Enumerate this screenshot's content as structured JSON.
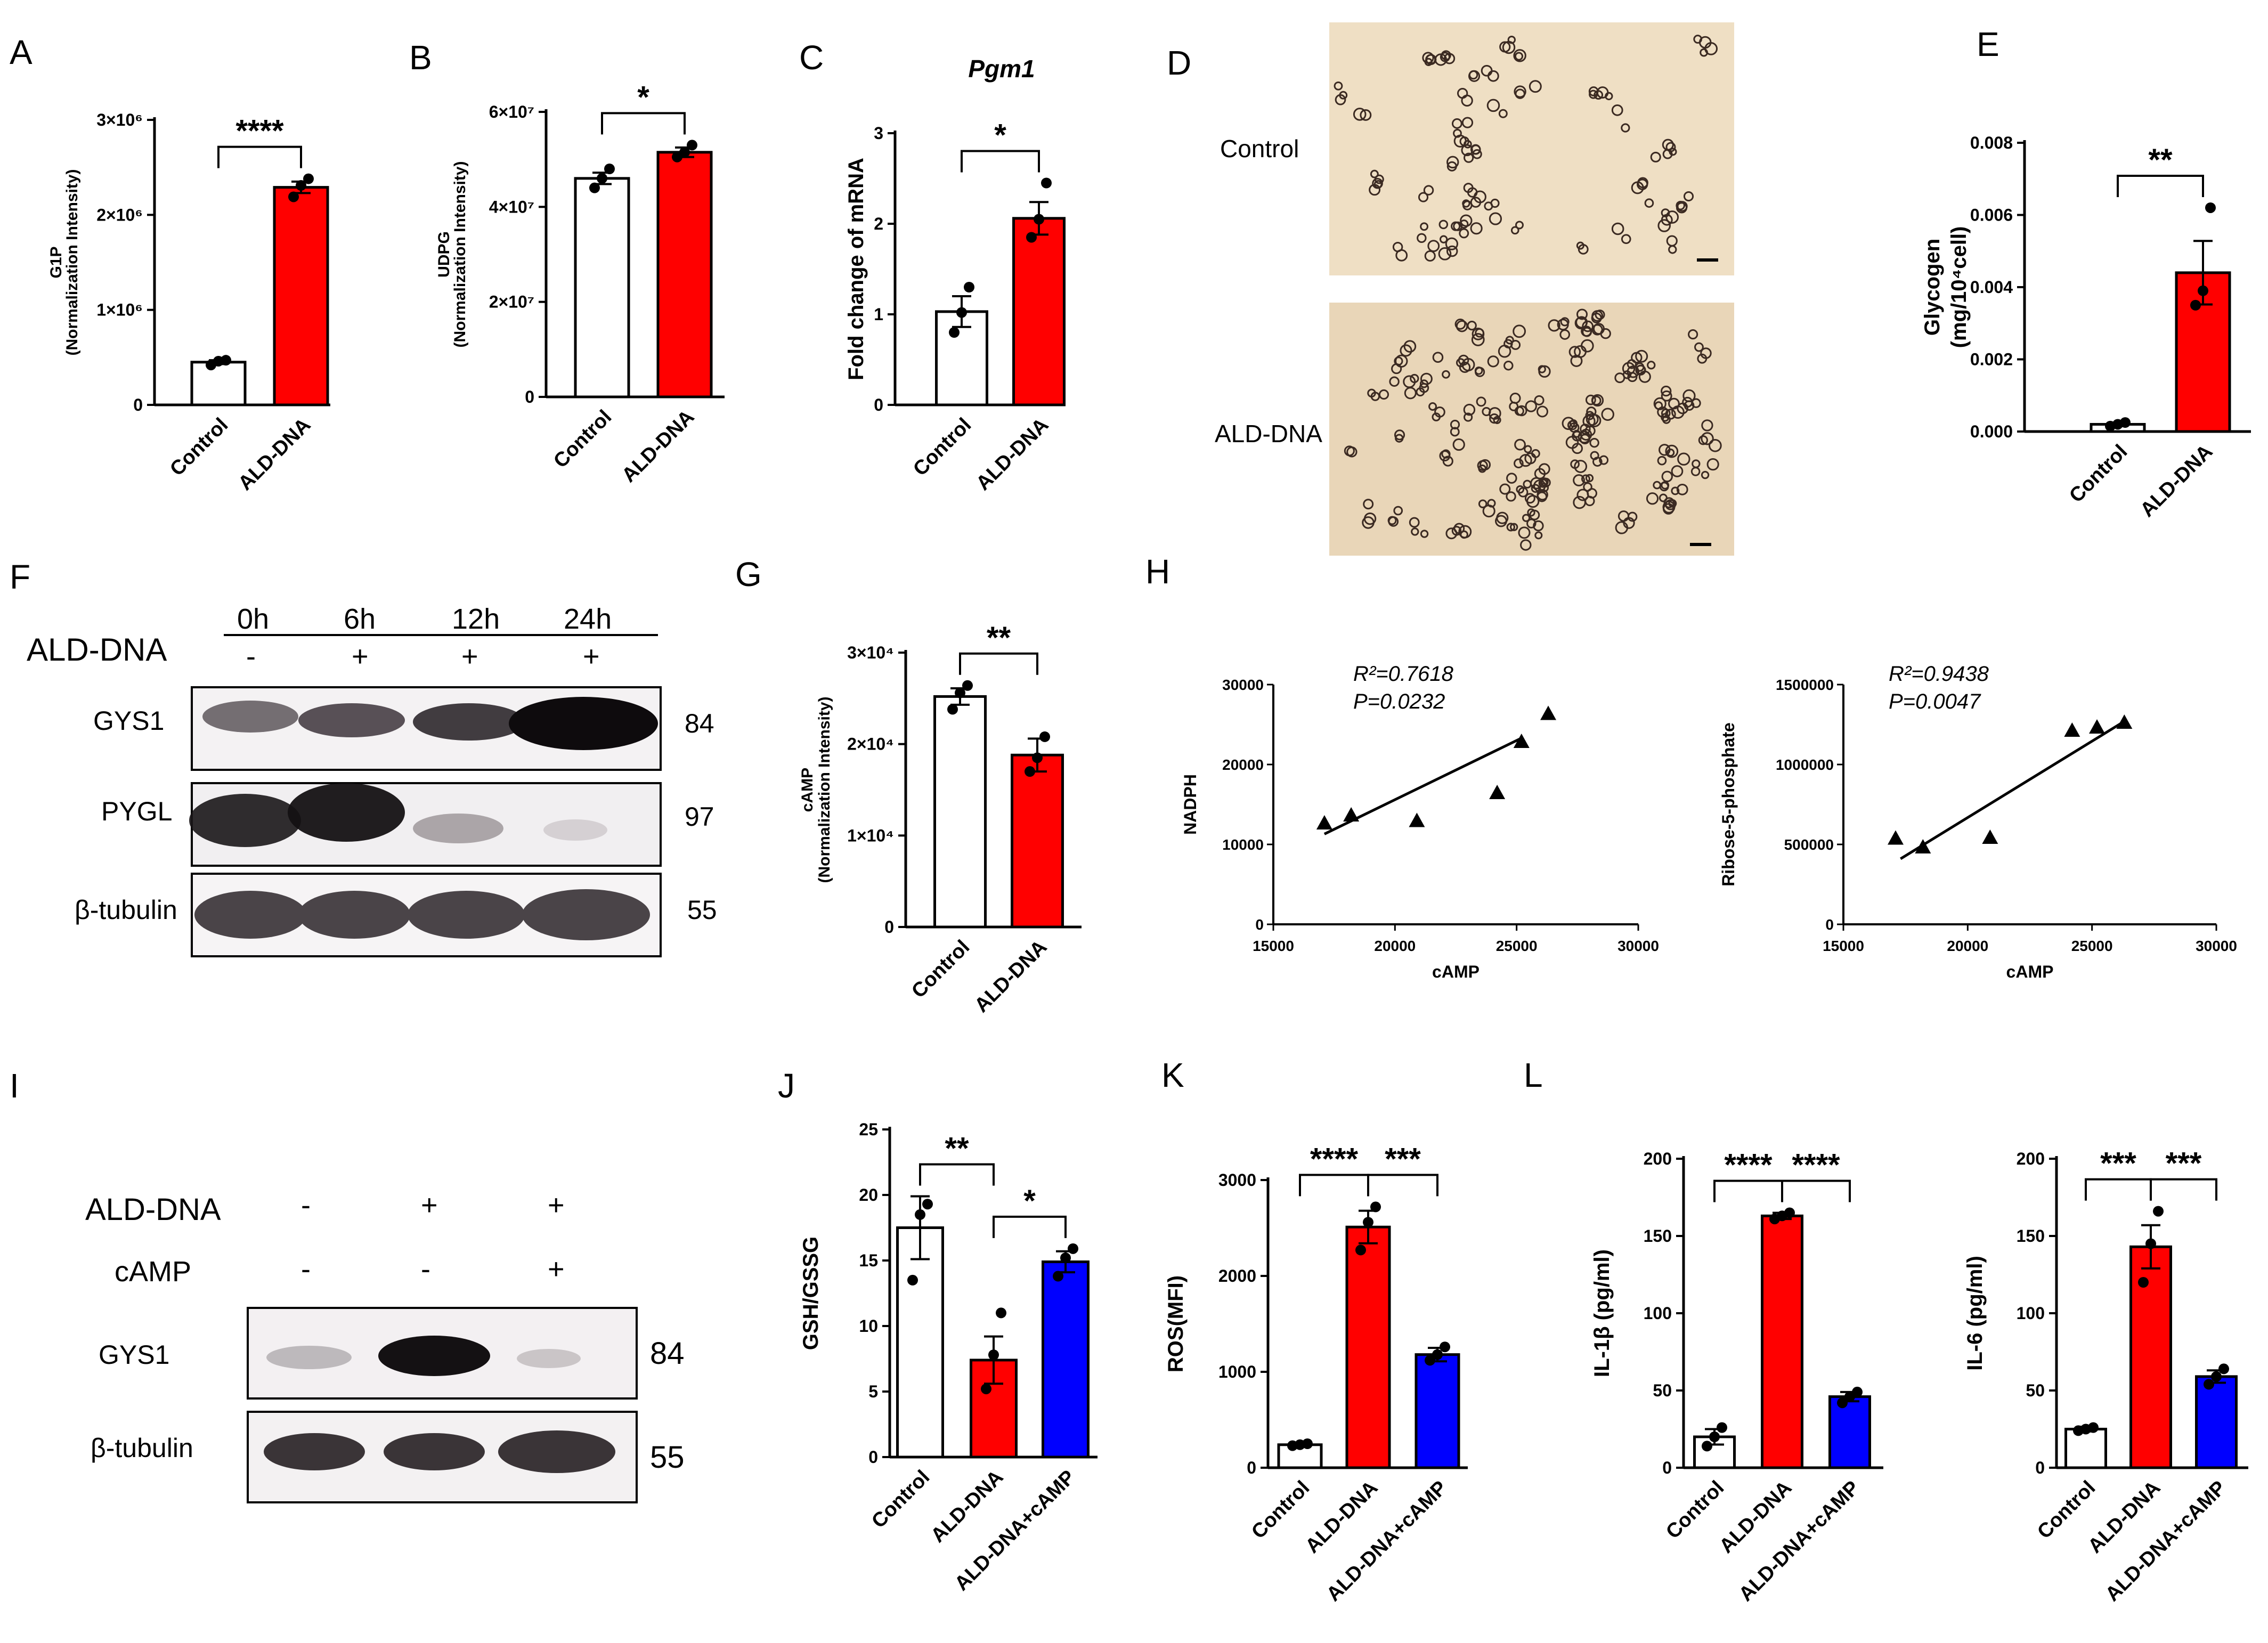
{
  "figure": {
    "panel_letters": [
      "A",
      "B",
      "C",
      "D",
      "E",
      "F",
      "G",
      "H",
      "I",
      "J",
      "K",
      "L"
    ]
  },
  "micrograph": {
    "row_labels": [
      "Control",
      "ALD-DNA"
    ],
    "fill_color": "#eedcc0"
  },
  "blots": {
    "F": {
      "timepoints": [
        "0h",
        "6h",
        "12h",
        "24h"
      ],
      "treatment_label": "ALD-DNA",
      "treatment_marks": [
        "-",
        "+",
        "+",
        "+"
      ],
      "proteins": [
        "GYS1",
        "PYGL",
        "β-tubulin"
      ],
      "kda": [
        "84",
        "97",
        "55"
      ]
    },
    "I": {
      "rows": [
        {
          "label": "ALD-DNA",
          "marks": [
            "-",
            "+",
            "+"
          ]
        },
        {
          "label": "cAMP",
          "marks": [
            "-",
            "-",
            "+"
          ]
        }
      ],
      "proteins": [
        "GYS1",
        "β-tubulin"
      ],
      "kda": [
        "84",
        "55"
      ]
    }
  },
  "colors": {
    "control": "#ffffff",
    "ald_dna": "#ff0000",
    "ald_camp": "#0000ff",
    "axis": "#000000"
  },
  "chart_data": [
    {
      "panel": "A",
      "type": "bar",
      "title": "",
      "ylabel": [
        "G1P",
        "(Normalization Intensity)"
      ],
      "categories": [
        "Control",
        "ALD-DNA"
      ],
      "values": [
        450000,
        2290000
      ],
      "errors": [
        20000,
        60000
      ],
      "points": [
        [
          420000,
          460000,
          470000
        ],
        [
          2190000,
          2310000,
          2380000
        ]
      ],
      "ylim": [
        0,
        3000000
      ],
      "yticks": [
        {
          "v": 0,
          "label": "0"
        },
        {
          "v": 1000000,
          "label": "1×10⁶"
        },
        {
          "v": 2000000,
          "label": "2×10⁶"
        },
        {
          "v": 3000000,
          "label": "3×10⁶"
        }
      ],
      "colors": [
        "#ffffff",
        "#ff0000"
      ],
      "significance": [
        {
          "from": 0,
          "to": 1,
          "label": "****"
        }
      ]
    },
    {
      "panel": "B",
      "type": "bar",
      "title": "",
      "ylabel": [
        "UDPG",
        "(Normalization Intensity)"
      ],
      "categories": [
        "Control",
        "ALD-DNA"
      ],
      "values": [
        46000000,
        51500000
      ],
      "errors": [
        1200000,
        1000000
      ],
      "points": [
        [
          44000000,
          46000000,
          48000000
        ],
        [
          50500000,
          51500000,
          53000000
        ]
      ],
      "ylim": [
        0,
        60000000
      ],
      "yticks": [
        {
          "v": 0,
          "label": "0"
        },
        {
          "v": 20000000,
          "label": "2×10⁷"
        },
        {
          "v": 40000000,
          "label": "4×10⁷"
        },
        {
          "v": 60000000,
          "label": "6×10⁷"
        }
      ],
      "colors": [
        "#ffffff",
        "#ff0000"
      ],
      "significance": [
        {
          "from": 0,
          "to": 1,
          "label": "*"
        }
      ]
    },
    {
      "panel": "C",
      "type": "bar",
      "title": "Pgm1",
      "ylabel": [
        "Fold change of mRNA"
      ],
      "categories": [
        "Control",
        "ALD-DNA"
      ],
      "values": [
        1.03,
        2.06
      ],
      "errors": [
        0.17,
        0.18
      ],
      "points": [
        [
          0.8,
          1.02,
          1.3
        ],
        [
          1.85,
          2.05,
          2.45
        ]
      ],
      "ylim": [
        0,
        3
      ],
      "yticks": [
        {
          "v": 0,
          "label": "0"
        },
        {
          "v": 1,
          "label": "1"
        },
        {
          "v": 2,
          "label": "2"
        },
        {
          "v": 3,
          "label": "3"
        }
      ],
      "colors": [
        "#ffffff",
        "#ff0000"
      ],
      "significance": [
        {
          "from": 0,
          "to": 1,
          "label": "*"
        }
      ]
    },
    {
      "panel": "E",
      "type": "bar",
      "title": "",
      "ylabel": [
        "Glycogen",
        "(mg/10⁴cell)"
      ],
      "categories": [
        "Control",
        "ALD-DNA"
      ],
      "values": [
        0.0002,
        0.0044
      ],
      "errors": [
        5e-05,
        0.00088
      ],
      "points": [
        [
          0.00015,
          0.0002,
          0.00025
        ],
        [
          0.0035,
          0.0039,
          0.0062
        ]
      ],
      "ylim": [
        0,
        0.008
      ],
      "yticks": [
        {
          "v": 0,
          "label": "0.000"
        },
        {
          "v": 0.002,
          "label": "0.002"
        },
        {
          "v": 0.004,
          "label": "0.004"
        },
        {
          "v": 0.006,
          "label": "0.006"
        },
        {
          "v": 0.008,
          "label": "0.008"
        }
      ],
      "colors": [
        "#ffffff",
        "#ff0000"
      ],
      "significance": [
        {
          "from": 0,
          "to": 1,
          "label": "**"
        }
      ]
    },
    {
      "panel": "G",
      "type": "bar",
      "title": "",
      "ylabel": [
        "cAMP",
        "(Normalization Intensity)"
      ],
      "categories": [
        "Control",
        "ALD-DNA"
      ],
      "values": [
        25200,
        18800
      ],
      "errors": [
        900,
        1800
      ],
      "points": [
        [
          23800,
          25600,
          26400
        ],
        [
          17000,
          18500,
          20800
        ]
      ],
      "ylim": [
        0,
        30000
      ],
      "yticks": [
        {
          "v": 0,
          "label": "0"
        },
        {
          "v": 10000,
          "label": "1×10⁴"
        },
        {
          "v": 20000,
          "label": "2×10⁴"
        },
        {
          "v": 30000,
          "label": "3×10⁴"
        }
      ],
      "colors": [
        "#ffffff",
        "#ff0000"
      ],
      "significance": [
        {
          "from": 0,
          "to": 1,
          "label": "**"
        }
      ]
    },
    {
      "panel": "H1",
      "type": "scatter",
      "xlabel": "cAMP",
      "ylabel": "NADPH",
      "annotation": [
        "R²=0.7618",
        "P=0.0232"
      ],
      "x": [
        17100,
        18200,
        20900,
        24200,
        25200,
        26300
      ],
      "y": [
        12600,
        13600,
        12900,
        16400,
        22800,
        26300
      ],
      "fit": [
        [
          17100,
          11300
        ],
        [
          25200,
          23300
        ]
      ],
      "xlim": [
        15000,
        30000
      ],
      "ylim": [
        0,
        30000
      ],
      "xticks": [
        {
          "v": 15000,
          "label": "15000"
        },
        {
          "v": 20000,
          "label": "20000"
        },
        {
          "v": 25000,
          "label": "25000"
        },
        {
          "v": 30000,
          "label": "30000"
        }
      ],
      "yticks": [
        {
          "v": 0,
          "label": "0"
        },
        {
          "v": 10000,
          "label": "10000"
        },
        {
          "v": 20000,
          "label": "20000"
        },
        {
          "v": 30000,
          "label": "30000"
        }
      ]
    },
    {
      "panel": "H2",
      "type": "scatter",
      "xlabel": "cAMP",
      "ylabel": "Ribose-5-phosphate",
      "annotation": [
        "R²=0.9438",
        "P=0.0047"
      ],
      "x": [
        17100,
        18200,
        20900,
        24200,
        25200,
        26300
      ],
      "y": [
        535000,
        480000,
        540000,
        1210000,
        1230000,
        1260000
      ],
      "fit": [
        [
          17300,
          410000
        ],
        [
          26300,
          1270000
        ]
      ],
      "xlim": [
        15000,
        30000
      ],
      "ylim": [
        0,
        1500000
      ],
      "xticks": [
        {
          "v": 15000,
          "label": "15000"
        },
        {
          "v": 20000,
          "label": "20000"
        },
        {
          "v": 25000,
          "label": "25000"
        },
        {
          "v": 30000,
          "label": "30000"
        }
      ],
      "yticks": [
        {
          "v": 0,
          "label": "0"
        },
        {
          "v": 500000,
          "label": "500000"
        },
        {
          "v": 1000000,
          "label": "1000000"
        },
        {
          "v": 1500000,
          "label": "1500000"
        }
      ]
    },
    {
      "panel": "J",
      "type": "bar",
      "title": "",
      "ylabel": [
        "GSH/GSSG"
      ],
      "categories": [
        "Control",
        "ALD-DNA",
        "ALD-DNA+cAMP"
      ],
      "values": [
        17.5,
        7.4,
        14.9
      ],
      "errors": [
        2.4,
        1.8,
        0.8
      ],
      "points": [
        [
          13.5,
          18.5,
          19.3
        ],
        [
          5.2,
          7.8,
          11.0
        ],
        [
          13.8,
          15.2,
          15.9
        ]
      ],
      "ylim": [
        0,
        25
      ],
      "yticks": [
        {
          "v": 0,
          "label": "0"
        },
        {
          "v": 5,
          "label": "5"
        },
        {
          "v": 10,
          "label": "10"
        },
        {
          "v": 15,
          "label": "15"
        },
        {
          "v": 20,
          "label": "20"
        },
        {
          "v": 25,
          "label": "25"
        }
      ],
      "colors": [
        "#ffffff",
        "#ff0000",
        "#0000ff"
      ],
      "significance": [
        {
          "from": 0,
          "to": 1,
          "label": "**"
        },
        {
          "from": 1,
          "to": 2,
          "label": "*"
        }
      ]
    },
    {
      "panel": "K",
      "type": "bar",
      "title": "",
      "ylabel": [
        "ROS(MFI)"
      ],
      "categories": [
        "Control",
        "ALD-DNA",
        "ALD-DNA+cAMP"
      ],
      "values": [
        240,
        2510,
        1180
      ],
      "errors": [
        15,
        170,
        70
      ],
      "points": [
        [
          230,
          240,
          250
        ],
        [
          2270,
          2560,
          2720
        ],
        [
          1120,
          1180,
          1260
        ]
      ],
      "ylim": [
        0,
        3000
      ],
      "yticks": [
        {
          "v": 0,
          "label": "0"
        },
        {
          "v": 1000,
          "label": "1000"
        },
        {
          "v": 2000,
          "label": "2000"
        },
        {
          "v": 3000,
          "label": "3000"
        }
      ],
      "colors": [
        "#ffffff",
        "#ff0000",
        "#0000ff"
      ],
      "significance": [
        {
          "from": 0,
          "to": 1,
          "label": "****"
        },
        {
          "from": 1,
          "to": 2,
          "label": "***"
        }
      ]
    },
    {
      "panel": "L1",
      "type": "bar",
      "title": "",
      "ylabel": [
        "IL-1β (pg/ml)"
      ],
      "categories": [
        "Control",
        "ALD-DNA",
        "ALD-DNA+cAMP"
      ],
      "values": [
        20,
        163,
        46
      ],
      "errors": [
        5,
        2,
        3
      ],
      "points": [
        [
          14,
          20,
          26
        ],
        [
          161,
          163,
          165
        ],
        [
          42,
          46,
          49
        ]
      ],
      "ylim": [
        0,
        200
      ],
      "yticks": [
        {
          "v": 0,
          "label": "0"
        },
        {
          "v": 50,
          "label": "50"
        },
        {
          "v": 100,
          "label": "100"
        },
        {
          "v": 150,
          "label": "150"
        },
        {
          "v": 200,
          "label": "200"
        }
      ],
      "colors": [
        "#ffffff",
        "#ff0000",
        "#0000ff"
      ],
      "significance": [
        {
          "from": 0,
          "to": 1,
          "label": "****"
        },
        {
          "from": 1,
          "to": 2,
          "label": "****"
        }
      ]
    },
    {
      "panel": "L2",
      "type": "bar",
      "title": "",
      "ylabel": [
        "IL-6 (pg/ml)"
      ],
      "categories": [
        "Control",
        "ALD-DNA",
        "ALD-DNA+cAMP"
      ],
      "values": [
        25,
        143,
        59
      ],
      "errors": [
        1.5,
        14,
        4
      ],
      "points": [
        [
          24,
          25,
          26
        ],
        [
          120,
          145,
          166
        ],
        [
          54,
          59,
          64
        ]
      ],
      "ylim": [
        0,
        200
      ],
      "yticks": [
        {
          "v": 0,
          "label": "0"
        },
        {
          "v": 50,
          "label": "50"
        },
        {
          "v": 100,
          "label": "100"
        },
        {
          "v": 150,
          "label": "150"
        },
        {
          "v": 200,
          "label": "200"
        }
      ],
      "colors": [
        "#ffffff",
        "#ff0000",
        "#0000ff"
      ],
      "significance": [
        {
          "from": 0,
          "to": 1,
          "label": "***"
        },
        {
          "from": 1,
          "to": 2,
          "label": "***"
        }
      ]
    }
  ]
}
